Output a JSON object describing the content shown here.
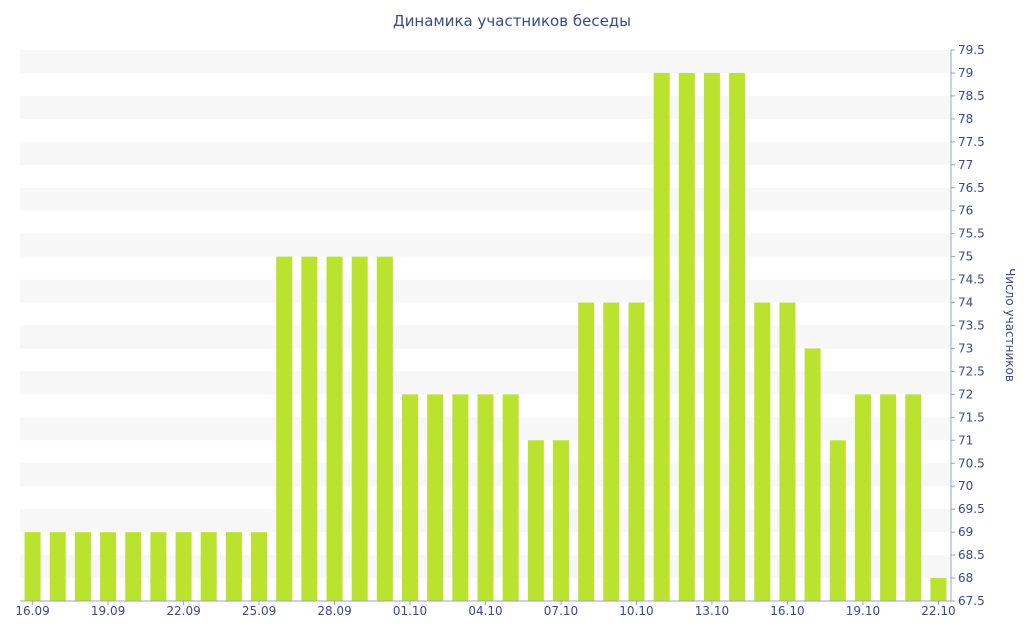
{
  "chart_data": {
    "type": "bar",
    "title": "Динамика участников беседы",
    "ylabel": "Число участников",
    "xlabel": "",
    "ylim": [
      67.5,
      79.5
    ],
    "y_tick_step": 0.5,
    "y_axis_side": "right",
    "grid": "horizontal bands",
    "legend": "none",
    "bar_color": "#bce230",
    "band_color": "#f7f7f7",
    "text_color": "#3a4a8a",
    "x_tick_labels": [
      "16.09",
      "19.09",
      "22.09",
      "25.09",
      "28.09",
      "01.10",
      "04.10",
      "07.10",
      "10.10",
      "13.10",
      "16.10",
      "19.10",
      "22.10"
    ],
    "categories": [
      "16.09",
      "17.09",
      "18.09",
      "19.09",
      "20.09",
      "21.09",
      "22.09",
      "23.09",
      "24.09",
      "25.09",
      "26.09",
      "27.09",
      "28.09",
      "29.09",
      "30.09",
      "01.10",
      "02.10",
      "03.10",
      "04.10",
      "05.10",
      "06.10",
      "07.10",
      "08.10",
      "09.10",
      "10.10",
      "11.10",
      "12.10",
      "13.10",
      "14.10",
      "15.10",
      "16.10",
      "17.10",
      "18.10",
      "19.10",
      "20.10",
      "21.10",
      "22.10"
    ],
    "values": [
      69,
      69,
      69,
      69,
      69,
      69,
      69,
      69,
      69,
      69,
      75,
      75,
      75,
      75,
      75,
      72,
      72,
      72,
      72,
      72,
      71,
      71,
      74,
      74,
      74,
      79,
      79,
      79,
      79,
      74,
      74,
      73,
      71,
      72,
      72,
      72,
      68
    ]
  }
}
